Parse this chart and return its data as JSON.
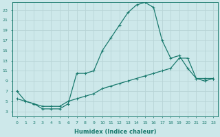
{
  "xlabel": "Humidex (Indice chaleur)",
  "bg_color": "#cde8ea",
  "grid_color": "#b8d4d6",
  "line_color": "#1a7a6e",
  "xlim": [
    -0.5,
    23.5
  ],
  "ylim": [
    2,
    24.5
  ],
  "yticks": [
    3,
    5,
    7,
    9,
    11,
    13,
    15,
    17,
    19,
    21,
    23
  ],
  "xticks": [
    0,
    1,
    2,
    3,
    4,
    5,
    6,
    7,
    8,
    9,
    10,
    11,
    12,
    13,
    14,
    15,
    16,
    17,
    18,
    19,
    20,
    21,
    22,
    23
  ],
  "line1_x": [
    0,
    1,
    2,
    3,
    4,
    5,
    6,
    7,
    8,
    9,
    10,
    11,
    12,
    13,
    14,
    15,
    16,
    17,
    18,
    19,
    20,
    21,
    22,
    23
  ],
  "line1_y": [
    7,
    5,
    4.5,
    3.5,
    3.5,
    3.5,
    4.5,
    10.5,
    10.5,
    11,
    15,
    17.5,
    20,
    22.5,
    24,
    24.5,
    23.5,
    17,
    13.5,
    14,
    11.5,
    9.5,
    9.5,
    9.5
  ],
  "line2_x": [
    0,
    1,
    2,
    3,
    4,
    5,
    6,
    7,
    8,
    9,
    10,
    11,
    12,
    13,
    14,
    15,
    16,
    17,
    18,
    19,
    20,
    21,
    22,
    23
  ],
  "line2_y": [
    5.5,
    5.0,
    4.5,
    4.0,
    4.0,
    4.0,
    5.0,
    5.5,
    6.0,
    6.5,
    7.5,
    8.0,
    8.5,
    9.0,
    9.5,
    10.0,
    10.5,
    11.0,
    11.5,
    13.5,
    13.5,
    9.5,
    9.0,
    9.5
  ]
}
